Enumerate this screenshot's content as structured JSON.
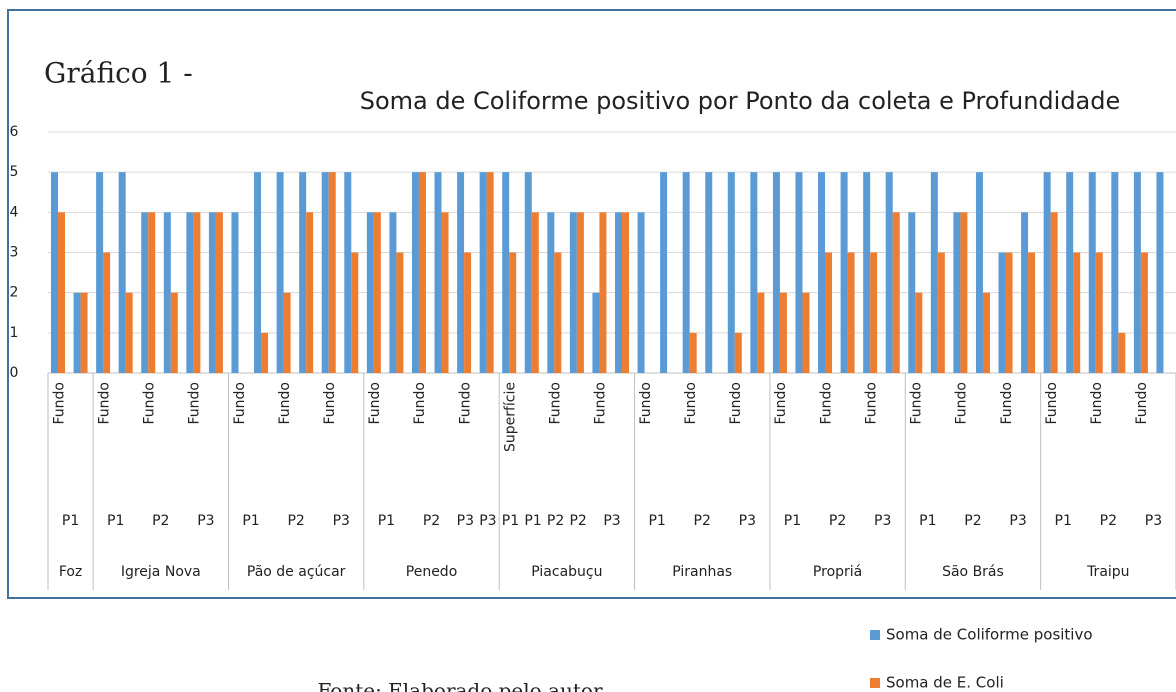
{
  "chart_data": {
    "type": "bar",
    "label": "Gráfico 1 -",
    "title": "Soma de Coliforme positivo por Ponto da coleta e Profundidade",
    "source": "Fonte: Elaborado pelo autor",
    "groups": [
      {
        "name": "Foz",
        "points": [
          {
            "name": "P1",
            "depths": [
              "Fundo",
              null
            ]
          }
        ]
      },
      {
        "name": "Igreja Nova",
        "points": [
          {
            "name": "P1",
            "depths": [
              "Fundo",
              null
            ]
          },
          {
            "name": "P2",
            "depths": [
              "Fundo",
              null
            ]
          },
          {
            "name": "P3",
            "depths": [
              "Fundo",
              null
            ]
          }
        ]
      },
      {
        "name": "Pão de açúcar",
        "points": [
          {
            "name": "P1",
            "depths": [
              "Fundo",
              null
            ]
          },
          {
            "name": "P2",
            "depths": [
              "Fundo",
              null
            ]
          },
          {
            "name": "P3",
            "depths": [
              "Fundo",
              null
            ]
          }
        ]
      },
      {
        "name": "Penedo",
        "points": [
          {
            "name": "P1",
            "depths": [
              "Fundo",
              null
            ]
          },
          {
            "name": "P2",
            "depths": [
              "Fundo",
              null
            ]
          },
          {
            "name": "P3",
            "depths": [
              "Fundo"
            ]
          },
          {
            "name": "P3",
            "depths": [
              null
            ]
          }
        ]
      },
      {
        "name": "Piacabuçu",
        "points": [
          {
            "name": "P1",
            "depths": [
              "Superfície"
            ]
          },
          {
            "name": "P1",
            "depths": [
              null
            ]
          },
          {
            "name": "P2",
            "depths": [
              "Fundo"
            ]
          },
          {
            "name": "P2",
            "depths": [
              null
            ]
          },
          {
            "name": "P3",
            "depths": [
              "Fundo",
              null
            ]
          }
        ]
      },
      {
        "name": "Piranhas",
        "points": [
          {
            "name": "P1",
            "depths": [
              "Fundo",
              null
            ]
          },
          {
            "name": "P2",
            "depths": [
              "Fundo",
              null
            ]
          },
          {
            "name": "P3",
            "depths": [
              "Fundo",
              null
            ]
          }
        ]
      },
      {
        "name": "Propriá",
        "points": [
          {
            "name": "P1",
            "depths": [
              "Fundo",
              null
            ]
          },
          {
            "name": "P2",
            "depths": [
              "Fundo",
              null
            ]
          },
          {
            "name": "P3",
            "depths": [
              "Fundo",
              null
            ]
          }
        ]
      },
      {
        "name": "São Brás",
        "points": [
          {
            "name": "P1",
            "depths": [
              "Fundo",
              null
            ]
          },
          {
            "name": "P2",
            "depths": [
              "Fundo",
              null
            ]
          },
          {
            "name": "P3",
            "depths": [
              "Fundo",
              null
            ]
          }
        ]
      },
      {
        "name": "Traipu",
        "points": [
          {
            "name": "P1",
            "depths": [
              "Fundo",
              null
            ]
          },
          {
            "name": "P2",
            "depths": [
              "Fundo",
              null
            ]
          },
          {
            "name": "P3",
            "depths": [
              "Fundo",
              null
            ]
          }
        ]
      }
    ],
    "series": [
      {
        "name": "Soma de Coliforme positivo",
        "color": "#5b9bd5",
        "values": [
          5,
          2,
          5,
          5,
          4,
          4,
          4,
          4,
          4,
          5,
          5,
          5,
          5,
          5,
          4,
          4,
          5,
          5,
          5,
          5,
          5,
          5,
          4,
          4,
          2,
          4,
          4,
          5,
          5,
          5,
          5,
          5,
          5,
          5,
          5,
          5,
          5,
          5,
          4,
          5,
          4,
          5,
          3,
          4,
          5,
          5,
          5,
          5,
          5,
          5
        ]
      },
      {
        "name": "Soma de E. Coli",
        "color": "#ed7d31",
        "values": [
          4,
          2,
          3,
          2,
          4,
          2,
          4,
          4,
          0,
          1,
          2,
          4,
          5,
          3,
          4,
          3,
          5,
          4,
          3,
          5,
          3,
          4,
          3,
          4,
          4,
          4,
          0,
          0,
          1,
          0,
          1,
          2,
          2,
          2,
          3,
          3,
          3,
          4,
          2,
          3,
          4,
          2,
          3,
          3,
          4,
          3,
          3,
          1,
          3,
          0
        ]
      }
    ],
    "ylim": [
      0,
      6
    ],
    "yticks": [
      0,
      1,
      2,
      3,
      4,
      5,
      6
    ],
    "grid": true
  }
}
